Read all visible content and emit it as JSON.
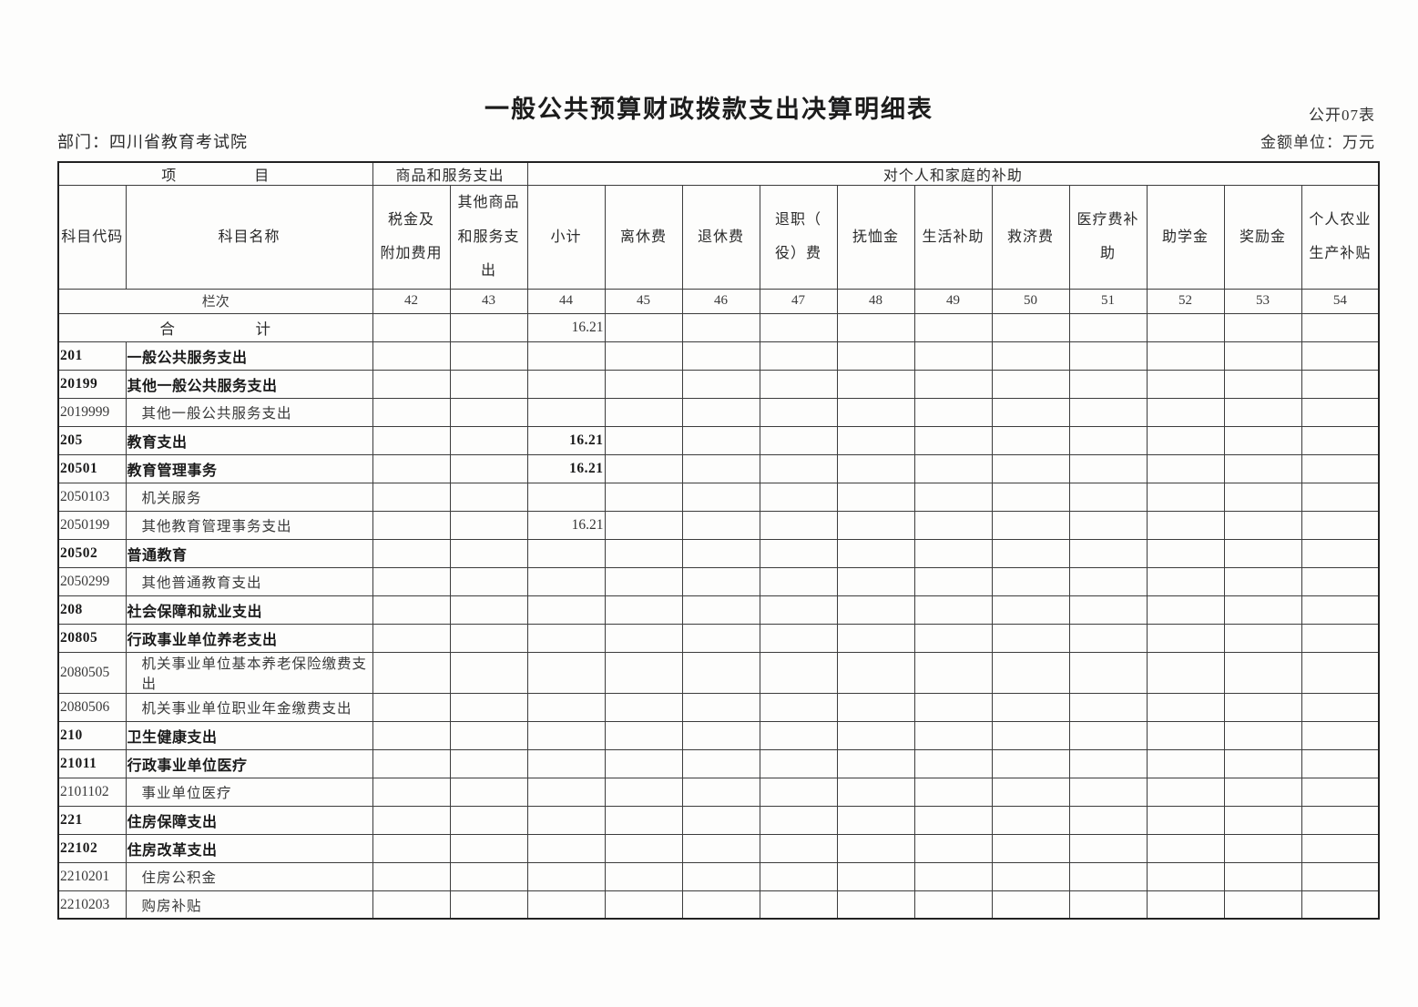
{
  "page": {
    "title": "一般公共预算财政拨款支出决算明细表",
    "form_code": "公开07表",
    "unit_note": "金额单位：万元",
    "department": "部门：四川省教育考试院"
  },
  "table": {
    "group_headers": {
      "project": "项　　　　　目",
      "goods_services": "商品和服务支出",
      "individual_family": "对个人和家庭的补助"
    },
    "col_headers": [
      "科目代码",
      "科目名称",
      "税金及\n附加费用",
      "其他商品\n和服务支出",
      "小计",
      "离休费",
      "退休费",
      "退职（\n役）费",
      "抚恤金",
      "生活补助",
      "救济费",
      "医疗费补助",
      "助学金",
      "奖励金",
      "个人农业\n生产补贴"
    ],
    "lanci_label": "栏次",
    "col_numbers": [
      "42",
      "43",
      "44",
      "45",
      "46",
      "47",
      "48",
      "49",
      "50",
      "51",
      "52",
      "53",
      "54"
    ],
    "rows": [
      {
        "code": "",
        "name": "合　　　　　计",
        "style": "total",
        "values": [
          "",
          "",
          "16.21",
          "",
          "",
          "",
          "",
          "",
          "",
          "",
          "",
          "",
          ""
        ]
      },
      {
        "code": "201",
        "name": "一般公共服务支出",
        "style": "category",
        "values": [
          "",
          "",
          "",
          "",
          "",
          "",
          "",
          "",
          "",
          "",
          "",
          "",
          ""
        ]
      },
      {
        "code": "20199",
        "name": "其他一般公共服务支出",
        "style": "category",
        "values": [
          "",
          "",
          "",
          "",
          "",
          "",
          "",
          "",
          "",
          "",
          "",
          "",
          ""
        ]
      },
      {
        "code": "2019999",
        "name": "其他一般公共服务支出",
        "style": "detail",
        "values": [
          "",
          "",
          "",
          "",
          "",
          "",
          "",
          "",
          "",
          "",
          "",
          "",
          ""
        ]
      },
      {
        "code": "205",
        "name": "教育支出",
        "style": "category",
        "values": [
          "",
          "",
          "16.21",
          "",
          "",
          "",
          "",
          "",
          "",
          "",
          "",
          "",
          ""
        ]
      },
      {
        "code": "20501",
        "name": "教育管理事务",
        "style": "category",
        "values": [
          "",
          "",
          "16.21",
          "",
          "",
          "",
          "",
          "",
          "",
          "",
          "",
          "",
          ""
        ]
      },
      {
        "code": "2050103",
        "name": "机关服务",
        "style": "detail",
        "values": [
          "",
          "",
          "",
          "",
          "",
          "",
          "",
          "",
          "",
          "",
          "",
          "",
          ""
        ]
      },
      {
        "code": "2050199",
        "name": "其他教育管理事务支出",
        "style": "detail",
        "values": [
          "",
          "",
          "16.21",
          "",
          "",
          "",
          "",
          "",
          "",
          "",
          "",
          "",
          ""
        ]
      },
      {
        "code": "20502",
        "name": "普通教育",
        "style": "category",
        "values": [
          "",
          "",
          "",
          "",
          "",
          "",
          "",
          "",
          "",
          "",
          "",
          "",
          ""
        ]
      },
      {
        "code": "2050299",
        "name": "其他普通教育支出",
        "style": "detail",
        "values": [
          "",
          "",
          "",
          "",
          "",
          "",
          "",
          "",
          "",
          "",
          "",
          "",
          ""
        ]
      },
      {
        "code": "208",
        "name": "社会保障和就业支出",
        "style": "category",
        "values": [
          "",
          "",
          "",
          "",
          "",
          "",
          "",
          "",
          "",
          "",
          "",
          "",
          ""
        ]
      },
      {
        "code": "20805",
        "name": "行政事业单位养老支出",
        "style": "category",
        "values": [
          "",
          "",
          "",
          "",
          "",
          "",
          "",
          "",
          "",
          "",
          "",
          "",
          ""
        ]
      },
      {
        "code": "2080505",
        "name": "机关事业单位基本养老保险缴费支出",
        "style": "detail",
        "values": [
          "",
          "",
          "",
          "",
          "",
          "",
          "",
          "",
          "",
          "",
          "",
          "",
          ""
        ]
      },
      {
        "code": "2080506",
        "name": "机关事业单位职业年金缴费支出",
        "style": "detail",
        "values": [
          "",
          "",
          "",
          "",
          "",
          "",
          "",
          "",
          "",
          "",
          "",
          "",
          ""
        ]
      },
      {
        "code": "210",
        "name": "卫生健康支出",
        "style": "category",
        "values": [
          "",
          "",
          "",
          "",
          "",
          "",
          "",
          "",
          "",
          "",
          "",
          "",
          ""
        ]
      },
      {
        "code": "21011",
        "name": "行政事业单位医疗",
        "style": "category",
        "values": [
          "",
          "",
          "",
          "",
          "",
          "",
          "",
          "",
          "",
          "",
          "",
          "",
          ""
        ]
      },
      {
        "code": "2101102",
        "name": "事业单位医疗",
        "style": "detail",
        "values": [
          "",
          "",
          "",
          "",
          "",
          "",
          "",
          "",
          "",
          "",
          "",
          "",
          ""
        ]
      },
      {
        "code": "221",
        "name": "住房保障支出",
        "style": "category",
        "values": [
          "",
          "",
          "",
          "",
          "",
          "",
          "",
          "",
          "",
          "",
          "",
          "",
          ""
        ]
      },
      {
        "code": "22102",
        "name": "住房改革支出",
        "style": "category",
        "values": [
          "",
          "",
          "",
          "",
          "",
          "",
          "",
          "",
          "",
          "",
          "",
          "",
          ""
        ]
      },
      {
        "code": "2210201",
        "name": "住房公积金",
        "style": "detail",
        "values": [
          "",
          "",
          "",
          "",
          "",
          "",
          "",
          "",
          "",
          "",
          "",
          "",
          ""
        ]
      },
      {
        "code": "2210203",
        "name": "购房补贴",
        "style": "detail",
        "values": [
          "",
          "",
          "",
          "",
          "",
          "",
          "",
          "",
          "",
          "",
          "",
          "",
          ""
        ]
      }
    ]
  }
}
